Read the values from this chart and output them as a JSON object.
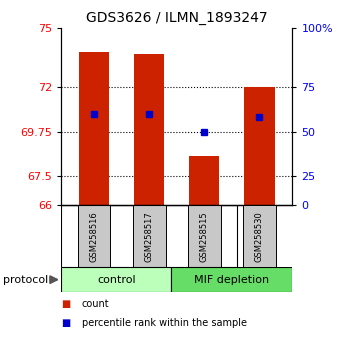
{
  "title": "GDS3626 / ILMN_1893247",
  "samples": [
    "GSM258516",
    "GSM258517",
    "GSM258515",
    "GSM258530"
  ],
  "bar_values": [
    73.8,
    73.7,
    68.5,
    72.0
  ],
  "percentile_values": [
    70.65,
    70.65,
    69.75,
    70.5
  ],
  "bar_color": "#cc2200",
  "percentile_color": "#0000cc",
  "ymin": 66,
  "ymax": 75,
  "yticks_left": [
    66,
    67.5,
    69.75,
    72,
    75
  ],
  "yticks_right_labels": [
    "0",
    "25",
    "50",
    "75",
    "100%"
  ],
  "yticks_right_values": [
    66,
    67.5,
    69.75,
    72,
    75
  ],
  "gridlines": [
    72,
    69.75,
    67.5
  ],
  "group_labels": [
    "control",
    "MIF depletion"
  ],
  "group_colors": [
    "#bbffbb",
    "#66dd66"
  ],
  "protocol_label": "protocol",
  "legend_count_label": "count",
  "legend_percentile_label": "percentile rank within the sample",
  "bar_width": 0.55,
  "xticklabel_bg": "#c8c8c8",
  "title_fontsize": 10
}
